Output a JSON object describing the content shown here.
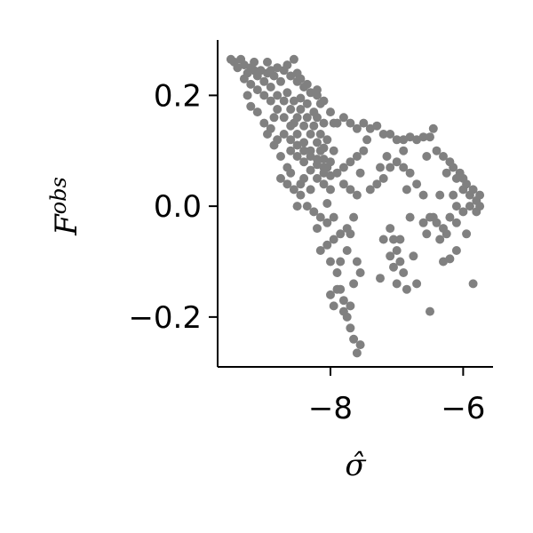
{
  "chart_data": {
    "type": "scatter",
    "title": "",
    "xlabel": "σ̂",
    "ylabel": {
      "base": "F",
      "sup": "obs"
    },
    "xlim": [
      -9.7,
      -5.55
    ],
    "ylim": [
      -0.29,
      0.3
    ],
    "xticks": [
      {
        "value": -8,
        "label": "−8"
      },
      {
        "value": -6,
        "label": "−6"
      }
    ],
    "yticks": [
      {
        "value": 0.2,
        "label": "0.2"
      },
      {
        "value": 0.0,
        "label": "0.0"
      },
      {
        "value": -0.2,
        "label": "−0.2"
      }
    ],
    "grid": false,
    "point_color": "#808080",
    "series": [
      {
        "points": [
          [
            -9.5,
            0.265
          ],
          [
            -9.45,
            0.26
          ],
          [
            -9.4,
            0.25
          ],
          [
            -9.35,
            0.265
          ],
          [
            -9.3,
            0.255
          ],
          [
            -9.25,
            0.24
          ],
          [
            -9.2,
            0.25
          ],
          [
            -9.15,
            0.26
          ],
          [
            -9.1,
            0.235
          ],
          [
            -9.05,
            0.245
          ],
          [
            -9.0,
            0.225
          ],
          [
            -8.95,
            0.24
          ],
          [
            -8.9,
            0.215
          ],
          [
            -8.85,
            0.235
          ],
          [
            -8.8,
            0.2
          ],
          [
            -8.75,
            0.225
          ],
          [
            -8.7,
            0.19
          ],
          [
            -8.65,
            0.205
          ],
          [
            -8.6,
            0.175
          ],
          [
            -8.55,
            0.19
          ],
          [
            -8.5,
            0.16
          ],
          [
            -8.45,
            0.175
          ],
          [
            -8.4,
            0.145
          ],
          [
            -8.35,
            0.16
          ],
          [
            -8.3,
            0.13
          ],
          [
            -8.25,
            0.145
          ],
          [
            -8.2,
            0.115
          ],
          [
            -8.15,
            0.1
          ],
          [
            -8.1,
            0.085
          ],
          [
            -8.05,
            0.07
          ],
          [
            -9.3,
            0.23
          ],
          [
            -9.2,
            0.22
          ],
          [
            -9.1,
            0.21
          ],
          [
            -9.0,
            0.2
          ],
          [
            -8.9,
            0.19
          ],
          [
            -8.8,
            0.175
          ],
          [
            -8.7,
            0.16
          ],
          [
            -8.6,
            0.145
          ],
          [
            -8.5,
            0.13
          ],
          [
            -8.4,
            0.115
          ],
          [
            -8.3,
            0.1
          ],
          [
            -8.2,
            0.085
          ],
          [
            -8.1,
            0.07
          ],
          [
            -8.0,
            0.055
          ],
          [
            -8.9,
            0.245
          ],
          [
            -8.8,
            0.25
          ],
          [
            -8.7,
            0.245
          ],
          [
            -8.6,
            0.235
          ],
          [
            -8.5,
            0.225
          ],
          [
            -8.4,
            0.215
          ],
          [
            -8.3,
            0.205
          ],
          [
            -8.2,
            0.21
          ],
          [
            -8.1,
            0.19
          ],
          [
            -8.0,
            0.17
          ],
          [
            -7.95,
            0.15
          ],
          [
            -8.6,
            0.1
          ],
          [
            -8.5,
            0.09
          ],
          [
            -8.4,
            0.08
          ],
          [
            -8.3,
            0.065
          ],
          [
            -8.2,
            0.05
          ],
          [
            -8.1,
            0.04
          ],
          [
            -8.0,
            0.03
          ],
          [
            -8.7,
            0.13
          ],
          [
            -8.6,
            0.12
          ],
          [
            -8.5,
            0.11
          ],
          [
            -8.4,
            0.1
          ],
          [
            -8.3,
            0.09
          ],
          [
            -8.2,
            0.075
          ],
          [
            -8.1,
            0.06
          ],
          [
            -8.75,
            0.05
          ],
          [
            -8.65,
            0.04
          ],
          [
            -8.55,
            0.03
          ],
          [
            -8.45,
            0.02
          ],
          [
            -8.35,
            0.0
          ],
          [
            -8.25,
            -0.01
          ],
          [
            -8.15,
            -0.02
          ],
          [
            -8.05,
            -0.03
          ],
          [
            -8.95,
            0.13
          ],
          [
            -8.85,
            0.11
          ],
          [
            -8.75,
            0.09
          ],
          [
            -8.65,
            0.07
          ],
          [
            -9.1,
            0.17
          ],
          [
            -9.0,
            0.15
          ],
          [
            -8.9,
            0.14
          ],
          [
            -8.8,
            0.12
          ],
          [
            -8.35,
            0.22
          ],
          [
            -8.2,
            0.2
          ],
          [
            -8.15,
            0.185
          ],
          [
            -8.1,
            0.15
          ],
          [
            -8.05,
            0.12
          ],
          [
            -7.9,
            0.15
          ],
          [
            -7.8,
            0.16
          ],
          [
            -7.7,
            0.15
          ],
          [
            -7.6,
            0.14
          ],
          [
            -7.5,
            0.15
          ],
          [
            -7.4,
            0.14
          ],
          [
            -7.3,
            0.145
          ],
          [
            -7.2,
            0.13
          ],
          [
            -7.1,
            0.13
          ],
          [
            -7.0,
            0.12
          ],
          [
            -6.9,
            0.12
          ],
          [
            -6.8,
            0.125
          ],
          [
            -6.7,
            0.12
          ],
          [
            -6.6,
            0.125
          ],
          [
            -6.5,
            0.125
          ],
          [
            -6.4,
            0.1
          ],
          [
            -6.3,
            0.09
          ],
          [
            -6.2,
            0.08
          ],
          [
            -6.1,
            0.05
          ],
          [
            -6.0,
            0.03
          ],
          [
            -5.9,
            0.02
          ],
          [
            -5.8,
            0.01
          ],
          [
            -5.75,
            0.0
          ],
          [
            -5.8,
            -0.01
          ],
          [
            -5.9,
            0.0
          ],
          [
            -6.0,
            -0.01
          ],
          [
            -6.1,
            0.0
          ],
          [
            -6.2,
            -0.02
          ],
          [
            -6.3,
            -0.04
          ],
          [
            -6.35,
            -0.06
          ],
          [
            -6.4,
            -0.03
          ],
          [
            -6.5,
            -0.02
          ],
          [
            -6.6,
            0.02
          ],
          [
            -6.7,
            0.04
          ],
          [
            -6.8,
            0.06
          ],
          [
            -6.9,
            0.07
          ],
          [
            -7.0,
            0.08
          ],
          [
            -7.1,
            0.07
          ],
          [
            -7.2,
            0.05
          ],
          [
            -7.3,
            0.04
          ],
          [
            -7.4,
            0.03
          ],
          [
            -7.5,
            0.1
          ],
          [
            -7.6,
            0.09
          ],
          [
            -7.7,
            0.08
          ],
          [
            -7.8,
            0.07
          ],
          [
            -7.9,
            0.06
          ],
          [
            -7.8,
            0.04
          ],
          [
            -7.7,
            0.03
          ],
          [
            -7.6,
            0.02
          ],
          [
            -7.65,
            -0.02
          ],
          [
            -7.75,
            -0.04
          ],
          [
            -7.85,
            -0.05
          ],
          [
            -7.95,
            -0.06
          ],
          [
            -8.05,
            -0.07
          ],
          [
            -8.15,
            -0.08
          ],
          [
            -8.0,
            -0.1
          ],
          [
            -7.9,
            -0.12
          ],
          [
            -7.85,
            -0.15
          ],
          [
            -7.8,
            -0.17
          ],
          [
            -7.75,
            -0.2
          ],
          [
            -7.7,
            -0.22
          ],
          [
            -7.65,
            -0.24
          ],
          [
            -7.6,
            -0.265
          ],
          [
            -7.55,
            -0.25
          ],
          [
            -7.9,
            -0.15
          ],
          [
            -7.85,
            -0.1
          ],
          [
            -7.75,
            -0.08
          ],
          [
            -7.7,
            -0.05
          ],
          [
            -7.1,
            -0.04
          ],
          [
            -7.05,
            -0.06
          ],
          [
            -7.0,
            -0.08
          ],
          [
            -6.95,
            -0.1
          ],
          [
            -6.9,
            -0.12
          ],
          [
            -7.0,
            -0.14
          ],
          [
            -7.05,
            -0.11
          ],
          [
            -7.1,
            -0.09
          ],
          [
            -6.6,
            -0.03
          ],
          [
            -6.55,
            -0.05
          ],
          [
            -6.7,
            -0.14
          ],
          [
            -6.5,
            -0.19
          ],
          [
            -6.3,
            -0.1
          ],
          [
            -6.2,
            -0.095
          ],
          [
            -6.1,
            -0.08
          ],
          [
            -5.95,
            -0.05
          ],
          [
            -5.85,
            -0.14
          ],
          [
            -6.85,
            -0.15
          ],
          [
            -6.75,
            -0.09
          ],
          [
            -5.85,
            0.03
          ],
          [
            -5.95,
            0.04
          ],
          [
            -6.05,
            0.06
          ],
          [
            -6.0,
            0.05
          ],
          [
            -5.75,
            0.02
          ],
          [
            -6.15,
            0.02
          ],
          [
            -6.25,
            -0.05
          ],
          [
            -6.45,
            0.14
          ],
          [
            -6.55,
            0.09
          ],
          [
            -7.45,
            0.12
          ],
          [
            -7.55,
            0.06
          ],
          [
            -7.25,
            0.07
          ],
          [
            -7.15,
            0.09
          ],
          [
            -8.55,
            0.265
          ],
          [
            -8.5,
            0.24
          ],
          [
            -8.45,
            0.23
          ],
          [
            -8.65,
            0.255
          ],
          [
            -8.95,
            0.26
          ],
          [
            -9.15,
            0.245
          ],
          [
            -9.25,
            0.2
          ],
          [
            -9.2,
            0.18
          ],
          [
            -8.85,
            0.16
          ],
          [
            -8.45,
            0.04
          ],
          [
            -8.5,
            0.0
          ],
          [
            -8.6,
            0.06
          ],
          [
            -8.55,
            0.15
          ],
          [
            -8.45,
            0.195
          ],
          [
            -8.35,
            0.185
          ],
          [
            -8.25,
            0.17
          ],
          [
            -8.2,
            0.16
          ],
          [
            -8.15,
            0.13
          ],
          [
            -8.1,
            0.105
          ],
          [
            -8.0,
            0.08
          ],
          [
            -7.95,
            0.1
          ],
          [
            -8.05,
            0.005
          ],
          [
            -7.95,
            -0.02
          ],
          [
            -8.2,
            -0.04
          ],
          [
            -8.3,
            0.03
          ],
          [
            -8.4,
            0.05
          ],
          [
            -8.0,
            -0.16
          ],
          [
            -7.95,
            -0.18
          ],
          [
            -7.8,
            -0.19
          ],
          [
            -7.7,
            -0.18
          ],
          [
            -7.65,
            -0.14
          ],
          [
            -7.6,
            -0.1
          ],
          [
            -7.55,
            -0.12
          ],
          [
            -7.25,
            -0.13
          ],
          [
            -7.2,
            -0.06
          ],
          [
            -6.95,
            -0.06
          ],
          [
            -6.9,
            0.1
          ],
          [
            -6.85,
            0.03
          ],
          [
            -6.8,
            -0.02
          ],
          [
            -6.45,
            -0.02
          ],
          [
            -6.35,
            0.02
          ],
          [
            -6.25,
            0.06
          ],
          [
            -6.15,
            0.07
          ],
          [
            -6.1,
            -0.03
          ]
        ]
      }
    ]
  }
}
